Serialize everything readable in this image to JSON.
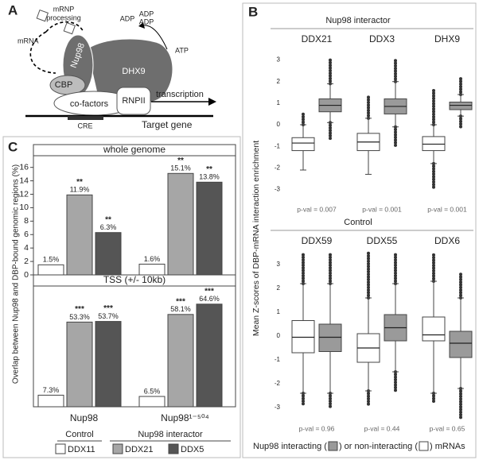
{
  "panel_labels": [
    "A",
    "B",
    "C"
  ],
  "diagram": {
    "labels": [
      "mRNP",
      "processing",
      "mRNA",
      "Nup98",
      "DHX9",
      "ADP",
      "ADP",
      "ADP",
      "ATP",
      "CBP",
      "co-factors",
      "RNPII",
      "transcription",
      "CRE",
      "Target gene"
    ]
  },
  "chart_data": [
    {
      "type": "boxplot",
      "title": "Nup98 interactor",
      "y_label": "Mean Z-scores of DBP-mRNA interaction enrichment",
      "categories": [
        "DDX21",
        "DDX3",
        "DHX9"
      ],
      "ylim": [
        -3.5,
        3.5
      ],
      "yticks": [
        -3,
        -2,
        -1,
        0,
        1,
        2,
        3
      ],
      "annotations": [
        "p-val = 0.007",
        "p-val = 0.001",
        "p-val = 0.001"
      ],
      "series": [
        {
          "color": "#ffffff",
          "values": [
            {
              "whisker_low": -2.1,
              "q1": -1.2,
              "median": -0.85,
              "q3": -0.6,
              "whisker_high": 0.0,
              "outlier_max": 0.6
            },
            {
              "whisker_low": -2.3,
              "q1": -1.2,
              "median": -0.8,
              "q3": -0.4,
              "whisker_high": 0.3,
              "outlier_max": 1.3
            },
            {
              "whisker_low": -1.8,
              "q1": -1.2,
              "median": -0.9,
              "q3": -0.55,
              "whisker_high": 0.0,
              "outlier_min": -2.9,
              "outlier_max": 1.6
            }
          ]
        },
        {
          "color": "#9a9a9a",
          "values": [
            {
              "whisker_low": 0.1,
              "q1": 0.6,
              "median": 0.9,
              "q3": 1.2,
              "whisker_high": 1.9,
              "outlier_min": -0.7,
              "outlier_max": 3.0
            },
            {
              "whisker_low": -0.1,
              "q1": 0.5,
              "median": 0.85,
              "q3": 1.2,
              "whisker_high": 2.0,
              "outlier_min": -1.0,
              "outlier_max": 3.0
            },
            {
              "whisker_low": 0.4,
              "q1": 0.7,
              "median": 0.9,
              "q3": 1.05,
              "whisker_high": 1.4,
              "outlier_min": -0.2,
              "outlier_max": 2.2
            }
          ]
        }
      ]
    },
    {
      "type": "boxplot",
      "title": "Control",
      "categories": [
        "DDX59",
        "DDX55",
        "DDX6"
      ],
      "ylim": [
        -3.5,
        3.5
      ],
      "yticks": [
        -3,
        -2,
        -1,
        0,
        1,
        2,
        3
      ],
      "annotations": [
        "p-val = 0.96",
        "p-val = 0.44",
        "p-val = 0.65"
      ],
      "legend_text": [
        "Nup98 interacting (",
        ") or non-interacting (",
        ") mRNAs"
      ],
      "series": [
        {
          "color": "#ffffff",
          "values": [
            {
              "whisker_low": -2.4,
              "q1": -0.7,
              "median": -0.05,
              "q3": 0.65,
              "whisker_high": 2.2,
              "outlier_min": -2.9,
              "outlier_max": 3.5
            },
            {
              "whisker_low": -2.3,
              "q1": -1.1,
              "median": -0.5,
              "q3": 0.1,
              "whisker_high": 1.6,
              "outlier_min": -2.9,
              "outlier_max": 3.5
            },
            {
              "whisker_low": -2.4,
              "q1": -0.2,
              "median": 0.05,
              "q3": 0.8,
              "whisker_high": 2.3,
              "outlier_min": -2.8,
              "outlier_max": 3.5
            }
          ]
        },
        {
          "color": "#9a9a9a",
          "values": [
            {
              "whisker_low": -2.4,
              "q1": -0.65,
              "median": -0.05,
              "q3": 0.5,
              "whisker_high": 2.2,
              "outlier_min": -3.0,
              "outlier_max": 3.5
            },
            {
              "whisker_low": -1.5,
              "q1": -0.2,
              "median": 0.35,
              "q3": 0.9,
              "whisker_high": 2.2,
              "outlier_min": -2.3,
              "outlier_max": 3.5
            },
            {
              "whisker_low": -2.2,
              "q1": -0.9,
              "median": -0.3,
              "q3": 0.2,
              "whisker_high": 1.6,
              "outlier_min": -3.5,
              "outlier_max": 2.7
            }
          ]
        }
      ]
    },
    {
      "type": "bar",
      "title": "whole genome",
      "y_label": "Overlap between Nup98 and DBP-bound genomic regions (%)",
      "ylim": [
        0,
        17.5
      ],
      "yticks": [
        0,
        2,
        4,
        6,
        8,
        10,
        12,
        14,
        16
      ],
      "series": [
        {
          "color": "#ffffff",
          "values": [
            1.5,
            1.6
          ],
          "value_labels": [
            "1.5%",
            "1.6%"
          ]
        },
        {
          "color": "#a6a6a6",
          "values": [
            11.9,
            15.1
          ],
          "value_labels": [
            "11.9%",
            "15.1%"
          ],
          "annotations": [
            "**",
            "**"
          ]
        },
        {
          "color": "#555555",
          "values": [
            6.3,
            13.8
          ],
          "value_labels": [
            "6.3%",
            "13.8%"
          ],
          "annotations": [
            "**",
            "**"
          ]
        }
      ]
    },
    {
      "type": "bar",
      "title": "TSS (+/- 10kb)",
      "categories": [
        "Nup98",
        "Nup98¹⁻⁵⁰⁴"
      ],
      "ylim": [
        0,
        75
      ],
      "legend_groups": [
        "Control",
        "Nup98 interactor"
      ],
      "series": [
        {
          "name": "DDX11",
          "color": "#ffffff",
          "values": [
            7.3,
            6.5
          ],
          "value_labels": [
            "7.3%",
            "6.5%"
          ]
        },
        {
          "name": "DDX21",
          "color": "#a6a6a6",
          "values": [
            53.3,
            58.1
          ],
          "value_labels": [
            "53.3%",
            "58.1%"
          ],
          "annotations": [
            "***",
            "***"
          ]
        },
        {
          "name": "DDX5",
          "color": "#555555",
          "values": [
            53.7,
            64.6
          ],
          "value_labels": [
            "53.7%",
            "64.6%"
          ],
          "annotations": [
            "***",
            "***"
          ]
        }
      ]
    }
  ]
}
